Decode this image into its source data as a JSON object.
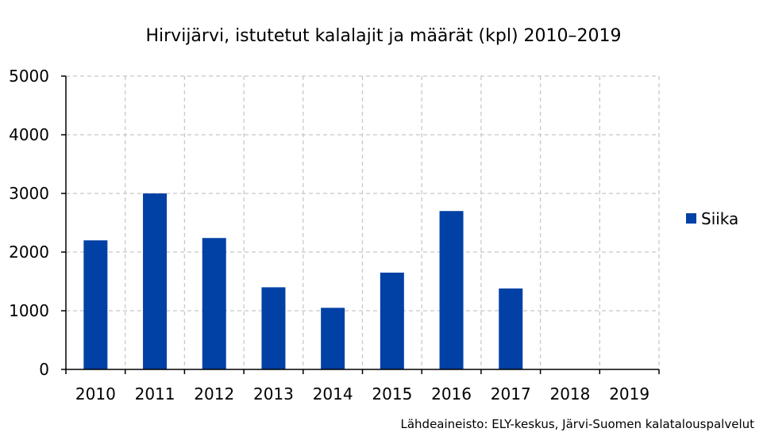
{
  "chart_data": {
    "type": "bar",
    "title": "Hirvijärvi, istutetut kalalajit ja määrät (kpl) 2010–2019",
    "categories": [
      "2010",
      "2011",
      "2012",
      "2013",
      "2014",
      "2015",
      "2016",
      "2017",
      "2018",
      "2019"
    ],
    "series": [
      {
        "name": "Siika",
        "values": [
          2200,
          3000,
          2240,
          1400,
          1050,
          1650,
          2700,
          1380,
          0,
          0
        ],
        "color": "#0141a5"
      }
    ],
    "xlabel": "",
    "ylabel": "",
    "ylim": [
      0,
      5000
    ],
    "yticks": [
      "0",
      "1000",
      "2000",
      "3000",
      "4000",
      "5000"
    ],
    "grid": true,
    "legend_position": "right",
    "source": "Lähdeaineisto: ELY-keskus, Järvi-Suomen kalatalouspalvelut"
  }
}
